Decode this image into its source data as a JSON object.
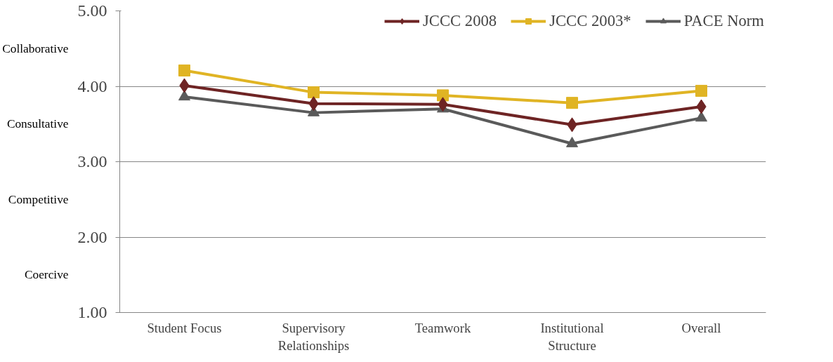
{
  "chart_data": {
    "type": "line",
    "categories": [
      "Student Focus",
      "Supervisory\nRelationships",
      "Teamwork",
      "Institutional\nStructure",
      "Overall"
    ],
    "series": [
      {
        "name": "JCCC 2008",
        "color": "#6e2424",
        "marker": "diamond",
        "values": [
          4.01,
          3.77,
          3.76,
          3.49,
          3.73
        ]
      },
      {
        "name": "JCCC 2003*",
        "color": "#e0b424",
        "marker": "square",
        "values": [
          4.21,
          3.92,
          3.88,
          3.78,
          3.94
        ]
      },
      {
        "name": "PACE Norm",
        "color": "#5a5a5a",
        "marker": "triangle",
        "values": [
          3.86,
          3.65,
          3.7,
          3.24,
          3.58
        ]
      }
    ],
    "ylim": [
      1,
      5
    ],
    "yticks": [
      {
        "value": 1,
        "label": "1.00"
      },
      {
        "value": 2,
        "label": "2.00"
      },
      {
        "value": 3,
        "label": "3.00"
      },
      {
        "value": 4,
        "label": "4.00"
      },
      {
        "value": 5,
        "label": "5.00"
      }
    ],
    "annotations": [
      "Collaborative",
      "Consultative",
      "Competitive",
      "Coercive"
    ],
    "grid": "y",
    "legend": "top",
    "line_style": "solid"
  }
}
